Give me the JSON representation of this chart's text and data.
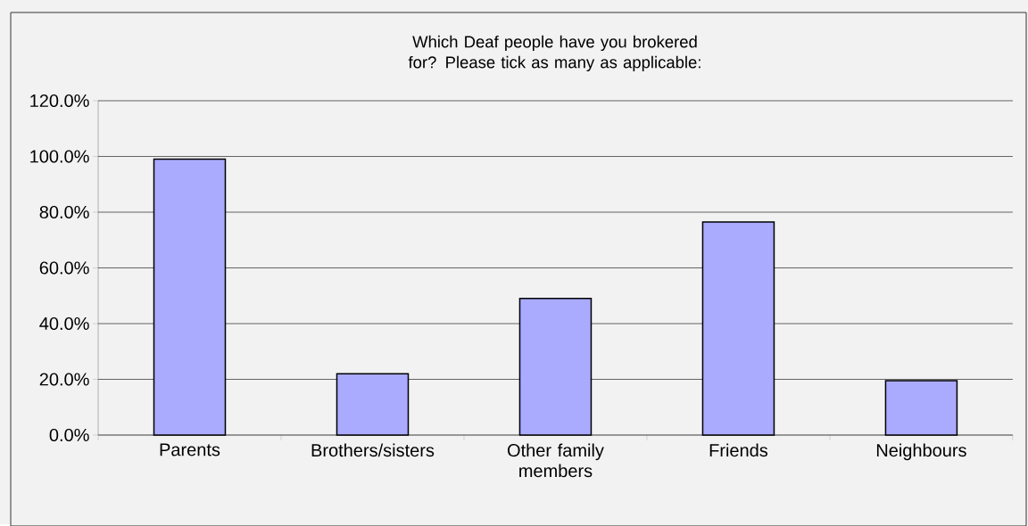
{
  "chart_data": {
    "type": "bar",
    "title": "Which Deaf people have you brokered for? Please tick as many as applicable:",
    "categories": [
      "Parents",
      "Brothers/sisters",
      "Other family members",
      "Friends",
      "Neighbours"
    ],
    "values": [
      99,
      22,
      49,
      76.5,
      19.5
    ],
    "color": "#aaaaff",
    "ylim": [
      0,
      120
    ],
    "yticks": [
      {
        "value": 0,
        "label": "0.0%"
      },
      {
        "value": 20,
        "label": "20.0%"
      },
      {
        "value": 40,
        "label": "40.0%"
      },
      {
        "value": 60,
        "label": "60.0%"
      },
      {
        "value": 80,
        "label": "80.0%"
      },
      {
        "value": 100,
        "label": "100.0%"
      },
      {
        "value": 120,
        "label": "120.0%"
      }
    ],
    "grid": "y"
  }
}
